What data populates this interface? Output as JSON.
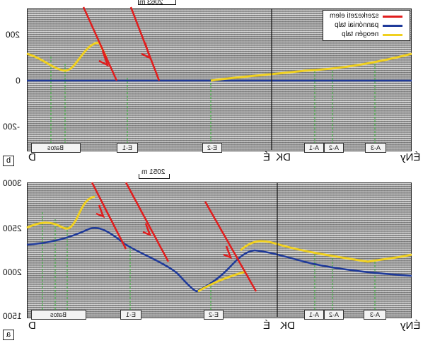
{
  "top_panel": {
    "label": "b",
    "scale_text": "2063 m",
    "y_ticks": [
      "200",
      "0",
      "-200"
    ],
    "left_end": "D",
    "mid_end": "É",
    "mid_right": "DK",
    "right_end": "ÉNy",
    "wells": [
      "Batos",
      "E-1",
      "E-2",
      "A-1",
      "A-2",
      "A-3"
    ],
    "legend": [
      {
        "label": "szerkezeti elem",
        "color": "#e01e1e"
      },
      {
        "label": "pannóniai talp",
        "color": "#1f3a9a"
      },
      {
        "label": "neogén talp",
        "color": "#f0d020"
      }
    ]
  },
  "bottom_panel": {
    "label": "a",
    "scale_text": "2051 m",
    "y_ticks": [
      "3000",
      "2500",
      "2000",
      "1500"
    ],
    "left_end": "D",
    "mid_end": "É",
    "mid_right": "DK",
    "right_end": "ÉNy",
    "wells": [
      "Batos",
      "E-1",
      "E-2",
      "A-1",
      "A-2",
      "A-3"
    ]
  },
  "colors": {
    "fault": "#e01e1e",
    "pannonian_base": "#1f3a9a",
    "neogene_base": "#f0d020",
    "wells": "#2fb52f"
  }
}
